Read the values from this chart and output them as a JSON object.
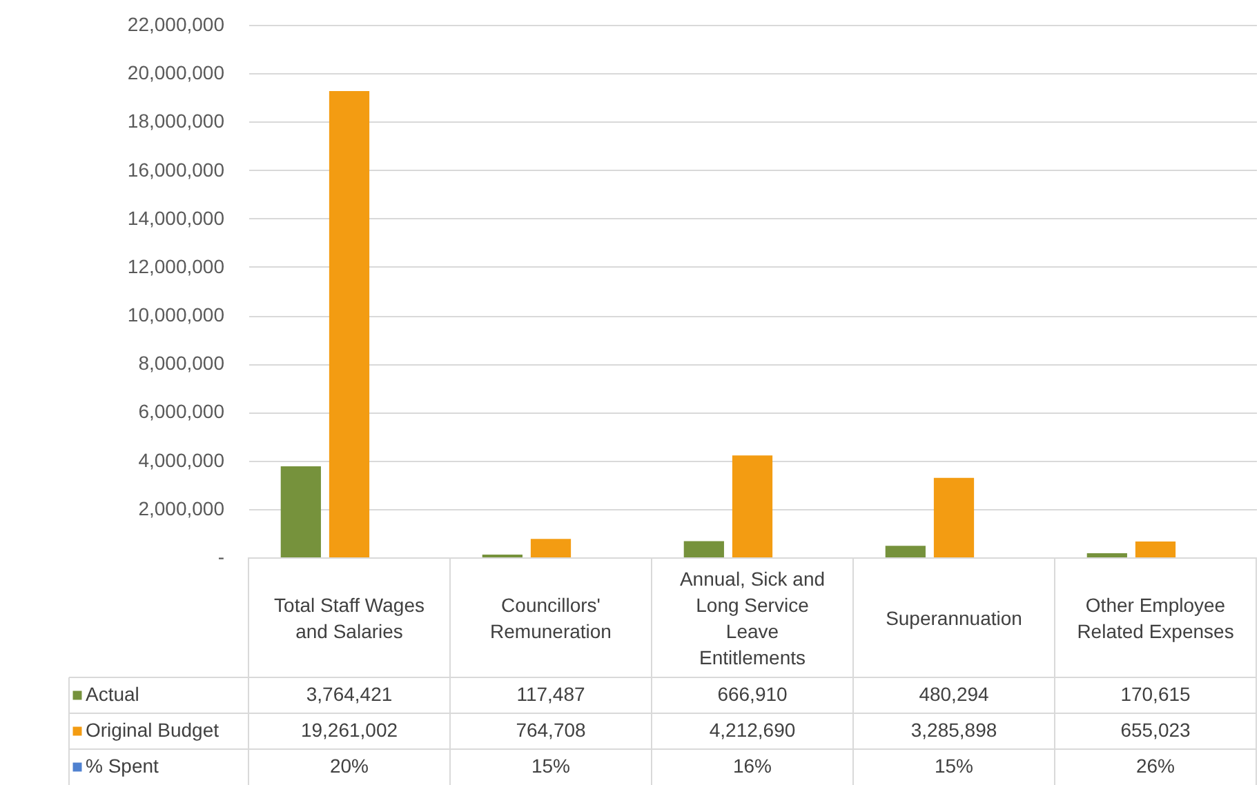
{
  "chart_data": {
    "type": "bar",
    "categories": [
      "Total Staff Wages and Salaries",
      "Councillors' Remuneration",
      "Annual, Sick and Long Service Leave Entitlements",
      "Superannuation",
      "Other Employee Related Expenses"
    ],
    "series": [
      {
        "name": "Actual",
        "color": "#76923c",
        "values": [
          3764421,
          117487,
          666910,
          480294,
          170615
        ],
        "value_labels": [
          "3,764,421",
          "117,487",
          "666,910",
          "480,294",
          "170,615"
        ]
      },
      {
        "name": "Original Budget",
        "color": "#f39c12",
        "values": [
          19261002,
          764708,
          4212690,
          3285898,
          655023
        ],
        "value_labels": [
          "19,261,002",
          "764,708",
          "4,212,690",
          "3,285,898",
          "655,023"
        ]
      },
      {
        "name": "% Spent",
        "color": "#4f81d0",
        "values": [
          20,
          15,
          16,
          15,
          26
        ],
        "value_labels": [
          "20%",
          "15%",
          "16%",
          "15%",
          "26%"
        ]
      }
    ],
    "ylim": [
      0,
      22000000
    ],
    "yticks": [
      {
        "value": 0,
        "label": "-"
      },
      {
        "value": 2000000,
        "label": "2,000,000"
      },
      {
        "value": 4000000,
        "label": "4,000,000"
      },
      {
        "value": 6000000,
        "label": "6,000,000"
      },
      {
        "value": 8000000,
        "label": "8,000,000"
      },
      {
        "value": 10000000,
        "label": "10,000,000"
      },
      {
        "value": 12000000,
        "label": "12,000,000"
      },
      {
        "value": 14000000,
        "label": "14,000,000"
      },
      {
        "value": 16000000,
        "label": "16,000,000"
      },
      {
        "value": 18000000,
        "label": "18,000,000"
      },
      {
        "value": 20000000,
        "label": "20,000,000"
      },
      {
        "value": 22000000,
        "label": "22,000,000"
      }
    ],
    "grid": "y",
    "legend": "bottom"
  }
}
